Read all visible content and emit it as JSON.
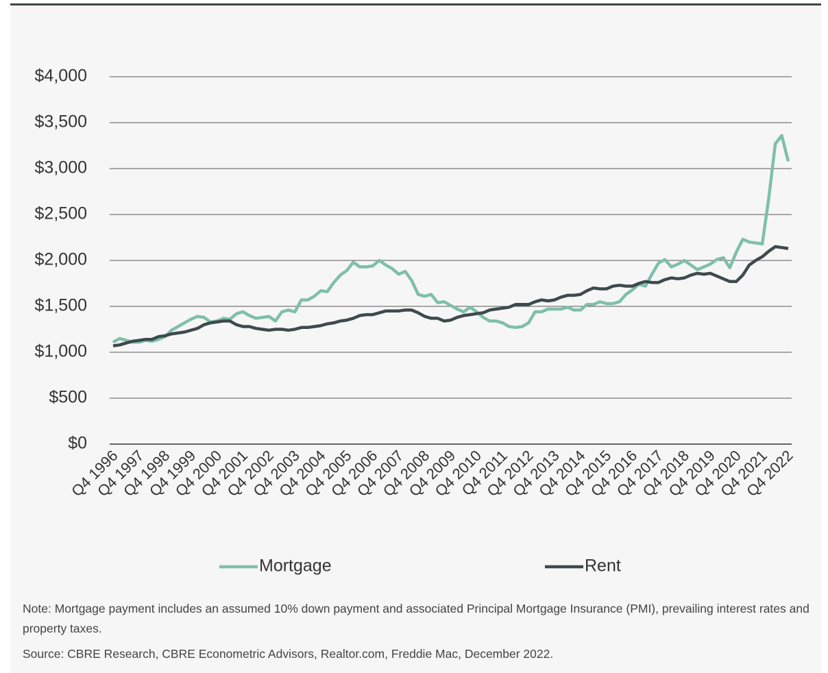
{
  "chart_data": {
    "type": "line",
    "categories": [
      "Q4 1996",
      null,
      null,
      null,
      "Q4 1997",
      null,
      null,
      null,
      "Q4 1998",
      null,
      null,
      null,
      "Q4 1999",
      null,
      null,
      null,
      "Q4 2000",
      null,
      null,
      null,
      "Q4 2001",
      null,
      null,
      null,
      "Q4 2002",
      null,
      null,
      null,
      "Q4 2003",
      null,
      null,
      null,
      "Q4 2004",
      null,
      null,
      null,
      "Q4 2005",
      null,
      null,
      null,
      "Q4 2006",
      null,
      null,
      null,
      "Q4 2007",
      null,
      null,
      null,
      "Q4 2008",
      null,
      null,
      null,
      "Q4 2009",
      null,
      null,
      null,
      "Q4 2010",
      null,
      null,
      null,
      "Q4 2011",
      null,
      null,
      null,
      "Q4 2012",
      null,
      null,
      null,
      "Q4 2013",
      null,
      null,
      null,
      "Q4 2014",
      null,
      null,
      null,
      "Q4 2015",
      null,
      null,
      null,
      "Q4 2016",
      null,
      null,
      null,
      "Q4 2017",
      null,
      null,
      null,
      "Q4 2018",
      null,
      null,
      null,
      "Q4 2019",
      null,
      null,
      null,
      "Q4 2020",
      null,
      null,
      null,
      "Q4 2021",
      null,
      null,
      null,
      "Q4 2022"
    ],
    "series": [
      {
        "name": "Mortgage",
        "color": "#7fbfa9",
        "values": [
          1110,
          1150,
          1130,
          1110,
          1110,
          1130,
          1120,
          1140,
          1170,
          1240,
          1280,
          1320,
          1360,
          1390,
          1380,
          1330,
          1340,
          1370,
          1360,
          1420,
          1440,
          1400,
          1370,
          1380,
          1390,
          1340,
          1440,
          1460,
          1440,
          1570,
          1570,
          1610,
          1670,
          1660,
          1760,
          1840,
          1890,
          1980,
          1930,
          1930,
          1940,
          2000,
          1950,
          1910,
          1850,
          1880,
          1780,
          1630,
          1610,
          1630,
          1540,
          1550,
          1510,
          1470,
          1440,
          1490,
          1440,
          1380,
          1340,
          1340,
          1320,
          1280,
          1270,
          1280,
          1320,
          1440,
          1440,
          1470,
          1470,
          1470,
          1490,
          1460,
          1460,
          1520,
          1520,
          1550,
          1530,
          1530,
          1550,
          1630,
          1680,
          1740,
          1720,
          1850,
          1970,
          2010,
          1930,
          1960,
          2000,
          1950,
          1900,
          1930,
          1960,
          2010,
          2030,
          1920,
          2090,
          2230,
          2200,
          2190,
          2180,
          2680,
          3270,
          3360,
          3080
        ]
      },
      {
        "name": "Rent",
        "color": "#3e4a4b",
        "values": [
          1070,
          1080,
          1100,
          1120,
          1130,
          1140,
          1140,
          1170,
          1180,
          1200,
          1210,
          1220,
          1240,
          1260,
          1300,
          1320,
          1330,
          1340,
          1340,
          1300,
          1280,
          1280,
          1260,
          1250,
          1240,
          1250,
          1250,
          1240,
          1250,
          1270,
          1270,
          1280,
          1290,
          1310,
          1320,
          1340,
          1350,
          1370,
          1400,
          1410,
          1410,
          1430,
          1450,
          1450,
          1450,
          1460,
          1460,
          1430,
          1390,
          1370,
          1370,
          1340,
          1350,
          1380,
          1400,
          1410,
          1420,
          1430,
          1460,
          1470,
          1480,
          1490,
          1520,
          1520,
          1520,
          1550,
          1570,
          1560,
          1570,
          1600,
          1620,
          1620,
          1630,
          1670,
          1700,
          1690,
          1690,
          1720,
          1730,
          1720,
          1720,
          1750,
          1770,
          1760,
          1760,
          1790,
          1810,
          1800,
          1810,
          1840,
          1860,
          1850,
          1860,
          1830,
          1800,
          1770,
          1770,
          1840,
          1950,
          2000,
          2040,
          2100,
          2150,
          2140,
          2130
        ]
      }
    ],
    "ylim": [
      0,
      4000
    ],
    "yticks": [
      {
        "value": 0,
        "label": "$0"
      },
      {
        "value": 500,
        "label": "$500"
      },
      {
        "value": 1000,
        "label": "$1,000"
      },
      {
        "value": 1500,
        "label": "$1,500"
      },
      {
        "value": 2000,
        "label": "$2,000"
      },
      {
        "value": 2500,
        "label": "$2,500"
      },
      {
        "value": 3000,
        "label": "$3,000"
      },
      {
        "value": 3500,
        "label": "$3,500"
      },
      {
        "value": 4000,
        "label": "$4,000"
      }
    ],
    "grid": true,
    "legend": "bottom",
    "note": "Note: Mortgage payment includes an assumed 10% down payment and associated Principal Mortgage Insurance (PMI), prevailing interest rates and property taxes.",
    "source": "Source: CBRE Research, CBRE Econometric Advisors, Realtor.com, Freddie Mac, December 2022."
  }
}
